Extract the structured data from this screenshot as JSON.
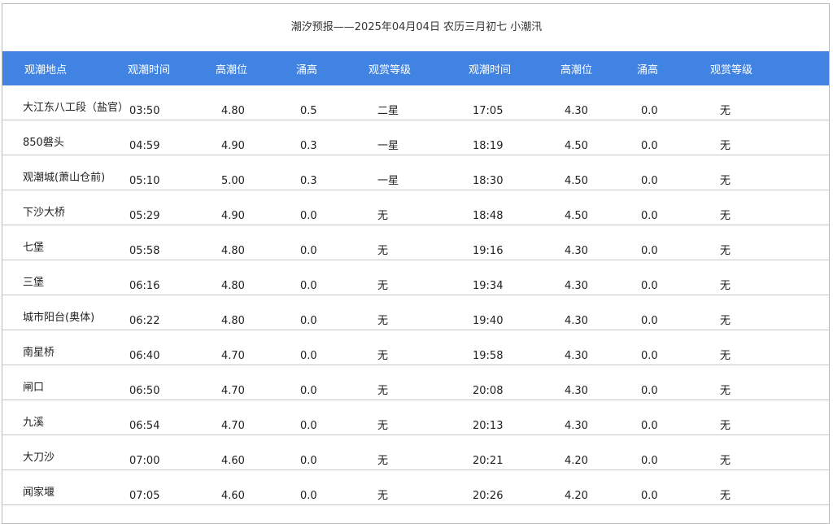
{
  "title": "潮汐预报——2025年04月04日 农历三月初七 小潮汛",
  "headers": [
    "观潮地点",
    "观潮时间",
    "高潮位",
    "涌高",
    "观赏等级",
    "观潮时间",
    "高潮位",
    "涌高",
    "观赏等级"
  ],
  "header_color": "#4183e2",
  "rows": [
    [
      "大江东八工段（盐官）",
      "03:50",
      "4.80",
      "0.5",
      "二星",
      "17:05",
      "4.30",
      "0.0",
      "无"
    ],
    [
      "850磐头",
      "04:59",
      "4.90",
      "0.3",
      "一星",
      "18:19",
      "4.50",
      "0.0",
      "无"
    ],
    [
      "观潮城(萧山仓前)",
      "05:10",
      "5.00",
      "0.3",
      "一星",
      "18:30",
      "4.50",
      "0.0",
      "无"
    ],
    [
      "下沙大桥",
      "05:29",
      "4.90",
      "0.0",
      "无",
      "18:48",
      "4.50",
      "0.0",
      "无"
    ],
    [
      "七堡",
      "05:58",
      "4.80",
      "0.0",
      "无",
      "19:16",
      "4.30",
      "0.0",
      "无"
    ],
    [
      "三堡",
      "06:16",
      "4.80",
      "0.0",
      "无",
      "19:34",
      "4.30",
      "0.0",
      "无"
    ],
    [
      "城市阳台(奥体)",
      "06:22",
      "4.80",
      "0.0",
      "无",
      "19:40",
      "4.30",
      "0.0",
      "无"
    ],
    [
      "南星桥",
      "06:40",
      "4.70",
      "0.0",
      "无",
      "19:58",
      "4.30",
      "0.0",
      "无"
    ],
    [
      "闸口",
      "06:50",
      "4.70",
      "0.0",
      "无",
      "20:08",
      "4.30",
      "0.0",
      "无"
    ],
    [
      "九溪",
      "06:54",
      "4.70",
      "0.0",
      "无",
      "20:13",
      "4.30",
      "0.0",
      "无"
    ],
    [
      "大刀沙",
      "07:00",
      "4.60",
      "0.0",
      "无",
      "20:21",
      "4.20",
      "0.0",
      "无"
    ],
    [
      "闻家堰",
      "07:05",
      "4.60",
      "0.0",
      "无",
      "20:26",
      "4.20",
      "0.0",
      "无"
    ]
  ]
}
